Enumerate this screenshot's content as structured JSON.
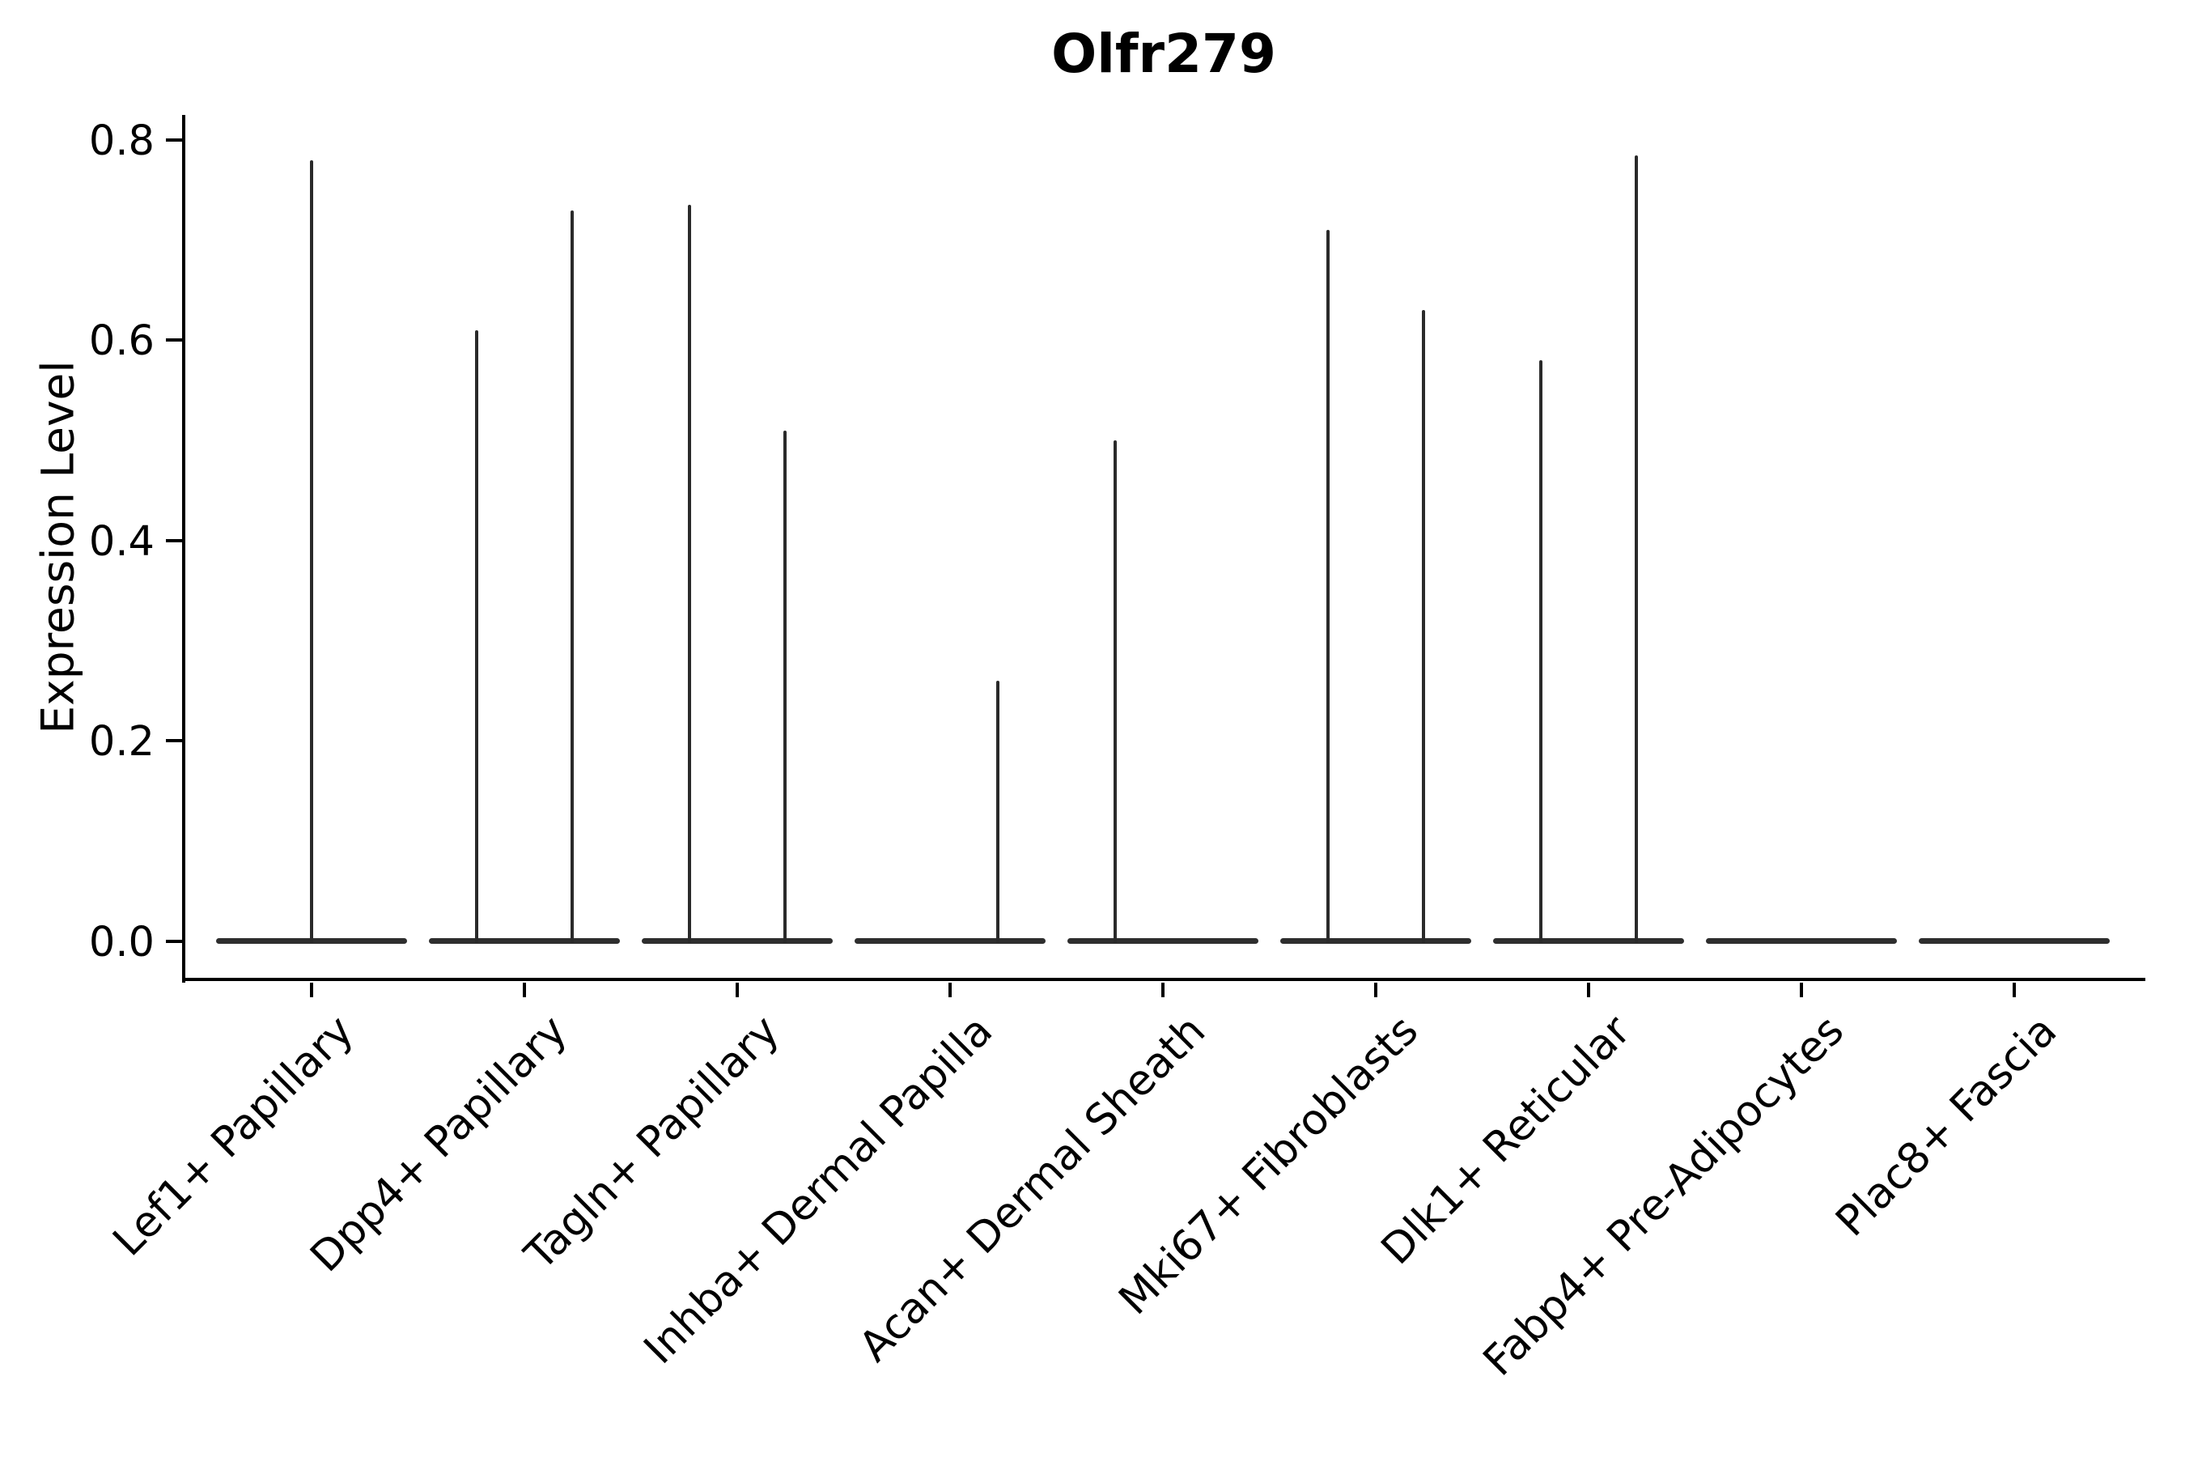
{
  "chart_data": {
    "type": "violin",
    "title": "Olfr279",
    "ylabel": "Expression Level",
    "xlabel": "",
    "grid": false,
    "legend": false,
    "ylim": [
      -0.038,
      0.825
    ],
    "y_ticks": [
      {
        "label": "0.0",
        "value": 0.0
      },
      {
        "label": "0.2",
        "value": 0.2
      },
      {
        "label": "0.4",
        "value": 0.4
      },
      {
        "label": "0.6",
        "value": 0.6
      },
      {
        "label": "0.8",
        "value": 0.8
      }
    ],
    "baseline_value": 0.0,
    "violin_width_fraction": 0.9,
    "categories": [
      {
        "label": "Lef1+ Papillary",
        "spikes": [
          {
            "offset": 0.0,
            "peak_expression": 0.78
          }
        ]
      },
      {
        "label": "Dpp4+ Papillary",
        "spikes": [
          {
            "offset": -0.225,
            "peak_expression": 0.61
          },
          {
            "offset": 0.225,
            "peak_expression": 0.73
          }
        ]
      },
      {
        "label": "Tagln+ Papillary",
        "spikes": [
          {
            "offset": -0.225,
            "peak_expression": 0.735
          },
          {
            "offset": 0.225,
            "peak_expression": 0.51
          }
        ]
      },
      {
        "label": "Inhba+ Dermal Papilla",
        "spikes": [
          {
            "offset": 0.225,
            "peak_expression": 0.26
          }
        ]
      },
      {
        "label": "Acan+ Dermal Sheath",
        "spikes": [
          {
            "offset": -0.225,
            "peak_expression": 0.5
          }
        ]
      },
      {
        "label": "Mki67+ Fibroblasts",
        "spikes": [
          {
            "offset": -0.225,
            "peak_expression": 0.71
          },
          {
            "offset": 0.225,
            "peak_expression": 0.63
          }
        ]
      },
      {
        "label": "Dlk1+ Reticular",
        "spikes": [
          {
            "offset": -0.225,
            "peak_expression": 0.58
          },
          {
            "offset": 0.225,
            "peak_expression": 0.785
          }
        ]
      },
      {
        "label": "Fabp4+ Pre-Adipocytes",
        "spikes": []
      },
      {
        "label": "Plac8+ Fascia",
        "spikes": []
      }
    ],
    "colors": {
      "violin": "#2e2e2e",
      "spike": "#2a2a2a",
      "axis": "#000000",
      "background": "#ffffff"
    }
  }
}
